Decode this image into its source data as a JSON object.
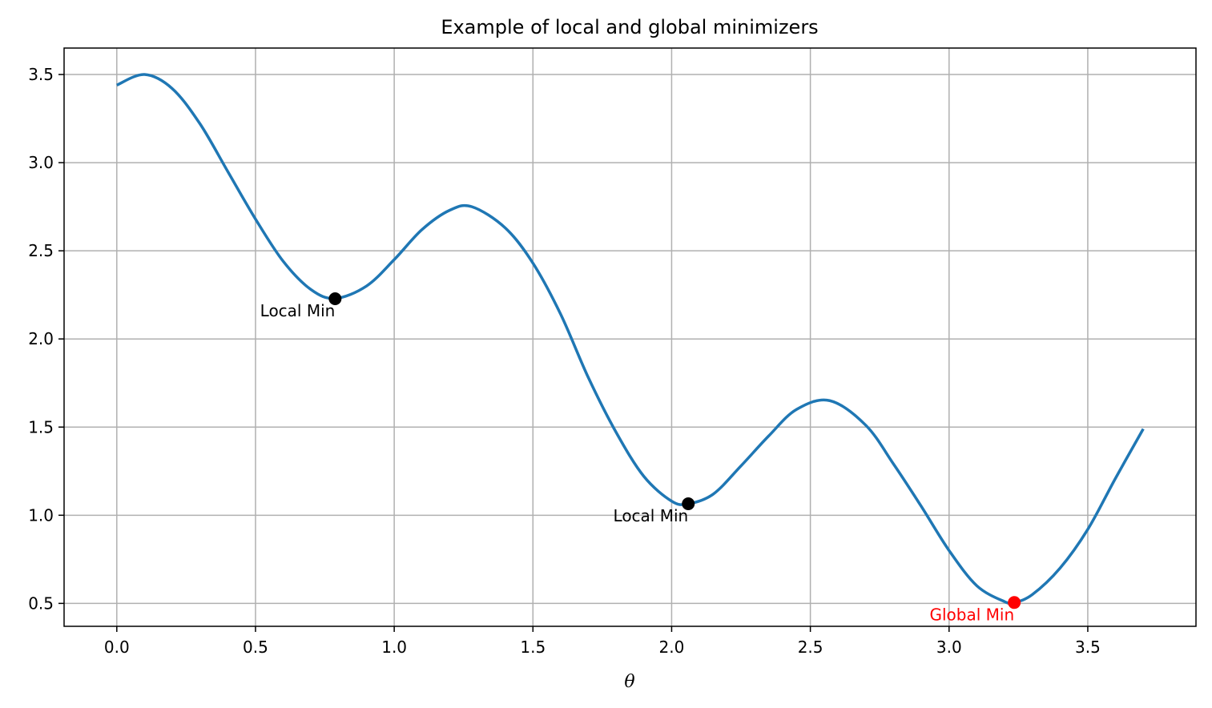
{
  "chart_data": {
    "type": "line",
    "title": "Example of local and global minimizers",
    "xlabel": "θ",
    "ylabel": "",
    "xlim": [
      -0.19,
      3.89
    ],
    "ylim": [
      0.37,
      3.65
    ],
    "xticks": [
      "0.0",
      "0.5",
      "1.0",
      "1.5",
      "2.0",
      "2.5",
      "3.0",
      "3.5"
    ],
    "yticks": [
      "0.5",
      "1.0",
      "1.5",
      "2.0",
      "2.5",
      "3.0",
      "3.5"
    ],
    "grid": true,
    "series": [
      {
        "color": "#1f77b4",
        "x": [
          0.0,
          0.1,
          0.2,
          0.3,
          0.4,
          0.5,
          0.6,
          0.7,
          0.787,
          0.9,
          1.0,
          1.1,
          1.2,
          1.28,
          1.4,
          1.5,
          1.6,
          1.7,
          1.8,
          1.9,
          2.0,
          2.06,
          2.15,
          2.25,
          2.35,
          2.45,
          2.57,
          2.7,
          2.8,
          2.9,
          3.0,
          3.1,
          3.2,
          3.235,
          3.3,
          3.4,
          3.5,
          3.6,
          3.7
        ],
        "y": [
          3.44,
          3.5,
          3.42,
          3.22,
          2.95,
          2.68,
          2.44,
          2.28,
          2.23,
          2.3,
          2.45,
          2.62,
          2.73,
          2.75,
          2.63,
          2.43,
          2.14,
          1.78,
          1.47,
          1.22,
          1.08,
          1.065,
          1.12,
          1.28,
          1.45,
          1.6,
          1.65,
          1.51,
          1.29,
          1.05,
          0.8,
          0.6,
          0.51,
          0.505,
          0.55,
          0.7,
          0.92,
          1.21,
          1.49
        ]
      }
    ],
    "points": [
      {
        "x": 0.787,
        "y": 2.228,
        "label": "Local Min",
        "color": "#000000"
      },
      {
        "x": 2.06,
        "y": 1.065,
        "label": "Local Min",
        "color": "#000000"
      },
      {
        "x": 3.235,
        "y": 0.505,
        "label": "Global Min",
        "color": "#ff0000"
      }
    ]
  }
}
